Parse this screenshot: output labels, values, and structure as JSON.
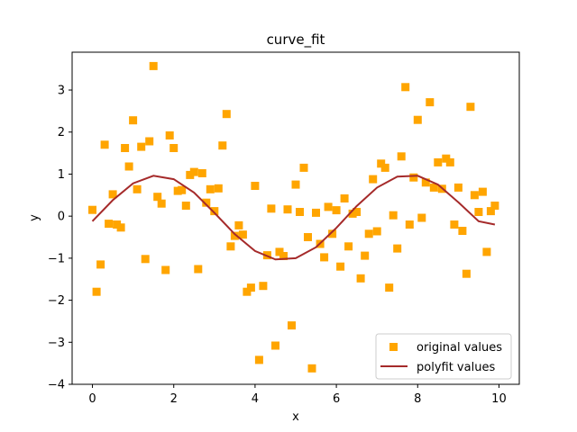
{
  "chart_data": {
    "type": "scatter",
    "title": "curve_fit",
    "xlabel": "x",
    "ylabel": "y",
    "xlim": [
      -0.5,
      10.5
    ],
    "ylim": [
      -4,
      3.9
    ],
    "xticks": [
      0,
      2,
      4,
      6,
      8,
      10
    ],
    "yticks": [
      -4,
      -3,
      -2,
      -1,
      0,
      1,
      2,
      3
    ],
    "grid": false,
    "legend_position": "lower-right",
    "series": [
      {
        "name": "original values",
        "kind": "scatter",
        "marker": "square",
        "color": "#ffa500",
        "x": [
          0.0,
          0.1,
          0.2,
          0.3,
          0.4,
          0.5,
          0.6,
          0.7,
          0.8,
          0.9,
          1.0,
          1.1,
          1.2,
          1.3,
          1.4,
          1.5,
          1.6,
          1.7,
          1.8,
          1.9,
          2.0,
          2.1,
          2.2,
          2.3,
          2.4,
          2.5,
          2.6,
          2.7,
          2.8,
          2.9,
          3.0,
          3.1,
          3.2,
          3.3,
          3.4,
          3.5,
          3.6,
          3.7,
          3.8,
          3.9,
          4.0,
          4.1,
          4.2,
          4.3,
          4.4,
          4.5,
          4.6,
          4.7,
          4.8,
          4.9,
          5.0,
          5.1,
          5.2,
          5.3,
          5.4,
          5.5,
          5.6,
          5.7,
          5.8,
          5.9,
          6.0,
          6.1,
          6.2,
          6.3,
          6.4,
          6.5,
          6.6,
          6.7,
          6.8,
          6.9,
          7.0,
          7.1,
          7.2,
          7.3,
          7.4,
          7.5,
          7.6,
          7.7,
          7.8,
          7.9,
          8.0,
          8.1,
          8.2,
          8.3,
          8.4,
          8.5,
          8.6,
          8.7,
          8.8,
          8.9,
          9.0,
          9.1,
          9.2,
          9.3,
          9.4,
          9.5,
          9.6,
          9.7,
          9.8,
          9.9
        ],
        "y": [
          0.15,
          -1.8,
          -1.15,
          1.7,
          -0.18,
          0.52,
          -0.2,
          -0.27,
          1.62,
          1.18,
          2.28,
          0.64,
          1.65,
          -1.02,
          1.78,
          3.57,
          0.46,
          0.3,
          -1.28,
          1.92,
          1.62,
          0.6,
          0.62,
          0.25,
          0.98,
          1.05,
          -1.26,
          1.02,
          0.32,
          0.64,
          0.12,
          0.66,
          1.68,
          2.43,
          -0.72,
          -0.47,
          -0.22,
          -0.44,
          -1.8,
          -1.7,
          0.72,
          -3.42,
          -1.66,
          -0.93,
          0.18,
          -3.08,
          -0.85,
          -0.95,
          0.16,
          -2.6,
          0.75,
          0.1,
          1.15,
          -0.5,
          -3.62,
          0.08,
          -0.66,
          -0.98,
          0.22,
          -0.42,
          0.14,
          -1.2,
          0.42,
          -0.72,
          0.06,
          0.1,
          -1.48,
          -0.94,
          -0.42,
          0.88,
          -0.36,
          1.25,
          1.15,
          -1.7,
          0.02,
          -0.77,
          1.42,
          3.07,
          -0.2,
          0.92,
          2.29,
          -0.04,
          0.8,
          2.71,
          0.68,
          1.28,
          0.65,
          1.37,
          1.28,
          -0.2,
          0.68,
          -0.35,
          -1.37,
          2.6,
          0.5,
          0.1,
          0.58,
          -0.85,
          0.12,
          0.25
        ]
      },
      {
        "name": "polyfit values",
        "kind": "line",
        "color": "#a52a2a",
        "x": [
          0.0,
          0.5,
          1.0,
          1.5,
          2.0,
          2.5,
          3.0,
          3.5,
          4.0,
          4.5,
          5.0,
          5.5,
          6.0,
          6.5,
          7.0,
          7.5,
          8.0,
          8.5,
          9.0,
          9.5,
          9.9
        ],
        "y": [
          -0.12,
          0.38,
          0.78,
          0.96,
          0.88,
          0.56,
          0.08,
          -0.43,
          -0.83,
          -1.03,
          -1.0,
          -0.74,
          -0.28,
          0.24,
          0.68,
          0.94,
          0.96,
          0.75,
          0.33,
          -0.12,
          -0.2
        ]
      }
    ]
  }
}
